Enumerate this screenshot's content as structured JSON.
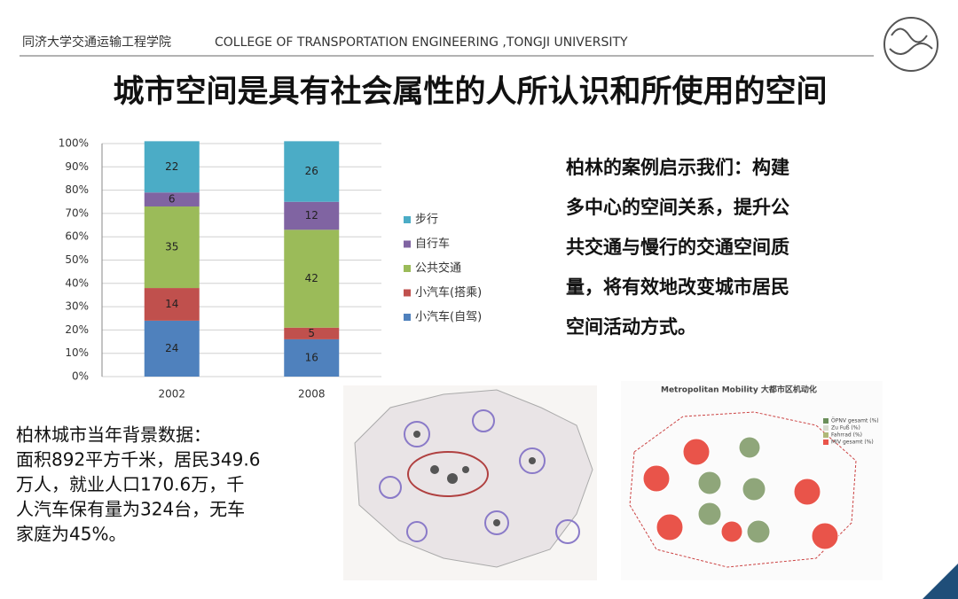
{
  "header": {
    "school": "同济大学交通运输工程学院",
    "english": "COLLEGE OF TRANSPORTATION ENGINEERING ,TONGJI UNIVERSITY"
  },
  "title": "城市空间是具有社会属性的人所认识和所使用的空间",
  "chart_data": {
    "type": "stacked_bar",
    "categories": [
      "2002",
      "2008"
    ],
    "series": [
      {
        "name": "小汽车(自驾)",
        "color": "#4f81bd",
        "values": [
          24,
          16
        ]
      },
      {
        "name": "小汽车(搭乘)",
        "color": "#c0504d",
        "values": [
          14,
          5
        ]
      },
      {
        "name": "公共交通",
        "color": "#9bbb59",
        "values": [
          35,
          42
        ]
      },
      {
        "name": "自行车",
        "color": "#8064a2",
        "values": [
          6,
          12
        ]
      },
      {
        "name": "步行",
        "color": "#4bacc6",
        "values": [
          22,
          26
        ]
      }
    ],
    "ylim": [
      0,
      100
    ],
    "yticks": [
      {
        "value": 0,
        "label": "0%"
      },
      {
        "value": 10,
        "label": "10%"
      },
      {
        "value": 20,
        "label": "20%"
      },
      {
        "value": 30,
        "label": "30%"
      },
      {
        "value": 40,
        "label": "40%"
      },
      {
        "value": 50,
        "label": "50%"
      },
      {
        "value": 60,
        "label": "60%"
      },
      {
        "value": 70,
        "label": "70%"
      },
      {
        "value": 80,
        "label": "80%"
      },
      {
        "value": 90,
        "label": "90%"
      },
      {
        "value": 100,
        "label": "100%"
      }
    ],
    "grid": true,
    "legend": "right"
  },
  "insight": {
    "lines": [
      "柏林的案例启示我们：构建",
      "多中心的空间关系，提升公",
      "共交通与慢行的交通空间质",
      "量，将有效地改变城市居民",
      "空间活动方式。"
    ]
  },
  "background": {
    "lines": [
      "柏林城市当年背景数据：",
      "面积892平方千米，居民349.6",
      "万人，就业人口170.6万，千",
      "人汽车保有量为324台，无车",
      "家庭为45%。"
    ]
  },
  "mobility_map": {
    "title": "Metropolitan Mobility 大都市区机动化",
    "legend": [
      "ÖPNV gesamt (%)",
      "Zu Fuß (%)",
      "Fahrrad (%)",
      "MIV gesamt (%)"
    ]
  }
}
